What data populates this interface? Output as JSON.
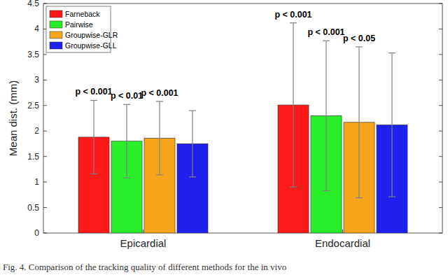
{
  "chart_data": {
    "type": "bar",
    "y_label": "Mean dist. (mm)",
    "caption": "Fig. 4. Comparison of the tracking quality of different methods for the in vivo",
    "categories": [
      "Epicardial",
      "Endocardial"
    ],
    "series": [
      {
        "name": "Farneback",
        "color": "#ff1a1a",
        "values": [
          1.88,
          2.51
        ],
        "errors": [
          0.72,
          1.61
        ],
        "annotations": [
          "p < 0.001",
          "p < 0.001"
        ]
      },
      {
        "name": "Pairwise",
        "color": "#2bee2b",
        "values": [
          1.8,
          2.3
        ],
        "errors": [
          0.72,
          1.47
        ],
        "annotations": [
          "p < 0.01",
          "p < 0.001"
        ]
      },
      {
        "name": "Groupwise-GLR",
        "color": "#f8a51e",
        "values": [
          1.86,
          2.17
        ],
        "errors": [
          0.72,
          1.48
        ],
        "annotations": [
          "p < 0.001",
          "p < 0.05"
        ]
      },
      {
        "name": "Groupwise-GLL",
        "color": "#1f1fee",
        "values": [
          1.75,
          2.12
        ],
        "errors": [
          0.65,
          1.41
        ],
        "annotations": [
          null,
          null
        ]
      }
    ],
    "ylim": [
      0,
      4.5
    ],
    "yticks": [
      0,
      0.5,
      1,
      1.5,
      2,
      2.5,
      3,
      3.5,
      4,
      4.5
    ],
    "grid": false,
    "legend": "upper left"
  }
}
